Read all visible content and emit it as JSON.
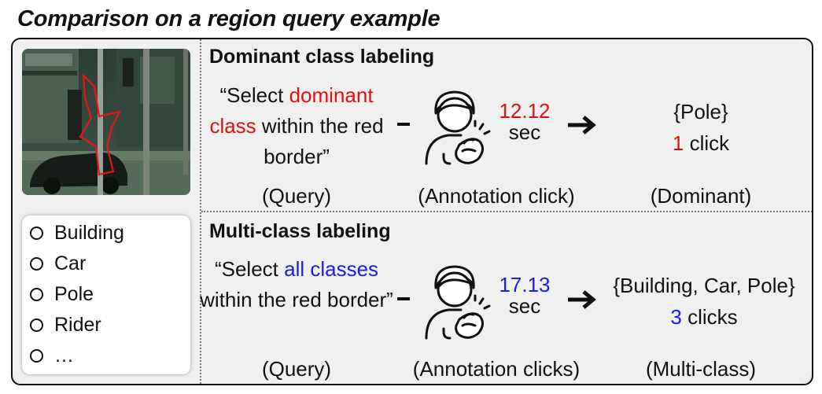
{
  "title": "Comparison on a region query example",
  "classes": [
    "Building",
    "Car",
    "Pole",
    "Rider",
    "…"
  ],
  "dominant": {
    "heading": "Dominant class labeling",
    "query_pre": "“Select ",
    "query_hl": "dominant class",
    "query_post": " within the red border”",
    "time_value": "12.12",
    "time_unit": "sec",
    "result_set": "{Pole}",
    "clicks_num": "1",
    "clicks_label": " click",
    "cap_query": "(Query)",
    "cap_anno": "(Annotation click)",
    "cap_result": "(Dominant)"
  },
  "multi": {
    "heading": "Multi-class labeling",
    "query_pre": "“Select ",
    "query_hl": "all classes",
    "query_post": " within the red border”",
    "time_value": "17.13",
    "time_unit": "sec",
    "result_set": "{Building, Car, Pole}",
    "clicks_num": "3",
    "clicks_label": " clicks",
    "cap_query": "(Query)",
    "cap_anno": "(Annotation clicks)",
    "cap_result": "(Multi-class)"
  },
  "colors": {
    "highlight_red": "#e01010",
    "highlight_blue": "#1a1aee"
  },
  "icons": {
    "annotator": "person-clicking-icon",
    "arrow": "right-arrow-icon"
  }
}
